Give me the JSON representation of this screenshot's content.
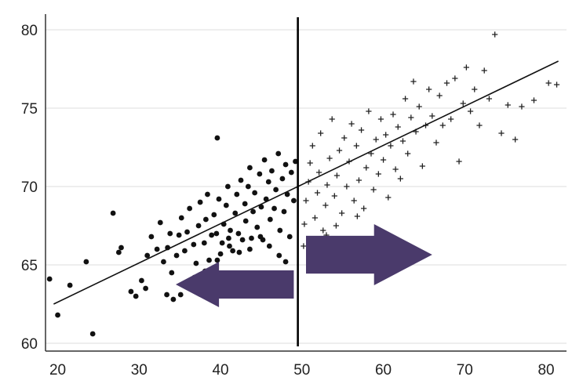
{
  "chart_data": {
    "type": "scatter",
    "title": "",
    "xlabel": "",
    "ylabel": "",
    "xlim": [
      18.5,
      82.5
    ],
    "ylim": [
      59.5,
      81
    ],
    "x_ticks": [
      20,
      30,
      40,
      50,
      60,
      70,
      80
    ],
    "y_ticks": [
      60,
      65,
      70,
      75,
      80
    ],
    "grid": "horizontal",
    "cutoff_x": 49.5,
    "regression_line": {
      "x": [
        19.5,
        81.5
      ],
      "y": [
        62.5,
        78.0
      ]
    },
    "arrows": [
      {
        "direction": "left",
        "x_range": [
          34.5,
          49
        ],
        "y_range": [
          62.3,
          65.2
        ],
        "color": "#4a3a6b"
      },
      {
        "direction": "right",
        "x_range": [
          50.5,
          66
        ],
        "y_range": [
          63.7,
          67.6
        ],
        "color": "#4a3a6b"
      }
    ],
    "series": [
      {
        "marker": "dot",
        "color": "#111111",
        "points": [
          [
            19,
            64.1
          ],
          [
            20,
            61.8
          ],
          [
            21.5,
            63.7
          ],
          [
            23.5,
            65.2
          ],
          [
            24.3,
            60.6
          ],
          [
            26.8,
            68.3
          ],
          [
            27.5,
            65.8
          ],
          [
            27.8,
            66.1
          ],
          [
            29,
            63.3
          ],
          [
            29.6,
            63.0
          ],
          [
            30.3,
            64.0
          ],
          [
            30.8,
            63.5
          ],
          [
            31.0,
            65.6
          ],
          [
            31.5,
            66.8
          ],
          [
            32.2,
            66.0
          ],
          [
            32.6,
            67.7
          ],
          [
            33.0,
            65.2
          ],
          [
            33.5,
            66.1
          ],
          [
            33.8,
            67.0
          ],
          [
            33.4,
            63.1
          ],
          [
            34.0,
            64.5
          ],
          [
            34.6,
            65.6
          ],
          [
            34.9,
            66.9
          ],
          [
            35.2,
            68.0
          ],
          [
            35.6,
            65.9
          ],
          [
            35.9,
            67.1
          ],
          [
            36.2,
            68.6
          ],
          [
            36.7,
            66.3
          ],
          [
            36.8,
            64.2
          ],
          [
            37.0,
            65.1
          ],
          [
            37.3,
            67.5
          ],
          [
            37.5,
            69.0
          ],
          [
            38.0,
            66.4
          ],
          [
            38.2,
            67.9
          ],
          [
            38.4,
            69.5
          ],
          [
            38.6,
            65.3
          ],
          [
            38.9,
            66.9
          ],
          [
            39.2,
            68.2
          ],
          [
            39.5,
            67.0
          ],
          [
            39.6,
            73.1
          ],
          [
            39.8,
            69.2
          ],
          [
            40.0,
            65.7
          ],
          [
            40.2,
            66.4
          ],
          [
            40.4,
            67.6
          ],
          [
            40.7,
            68.8
          ],
          [
            40.9,
            70.0
          ],
          [
            41.1,
            66.2
          ],
          [
            41.2,
            67.2
          ],
          [
            41.5,
            65.9
          ],
          [
            41.8,
            68.3
          ],
          [
            42.0,
            69.5
          ],
          [
            42.2,
            67.0
          ],
          [
            42.5,
            70.4
          ],
          [
            42.7,
            66.6
          ],
          [
            43.0,
            68.9
          ],
          [
            43.1,
            67.8
          ],
          [
            43.4,
            70.0
          ],
          [
            43.6,
            71.2
          ],
          [
            43.8,
            66.7
          ],
          [
            44.0,
            68.4
          ],
          [
            44.2,
            69.6
          ],
          [
            44.5,
            67.4
          ],
          [
            44.8,
            70.8
          ],
          [
            45.0,
            68.7
          ],
          [
            45.2,
            66.6
          ],
          [
            45.4,
            71.7
          ],
          [
            45.6,
            69.2
          ],
          [
            45.9,
            70.3
          ],
          [
            46.1,
            67.9
          ],
          [
            46.3,
            71.0
          ],
          [
            46.6,
            68.6
          ],
          [
            46.8,
            69.8
          ],
          [
            47.1,
            72.1
          ],
          [
            47.3,
            67.2
          ],
          [
            47.6,
            70.5
          ],
          [
            47.8,
            68.4
          ],
          [
            48.0,
            71.4
          ],
          [
            48.2,
            69.5
          ],
          [
            48.5,
            66.8
          ],
          [
            48.7,
            70.9
          ],
          [
            49.0,
            69.1
          ],
          [
            49.2,
            71.6
          ],
          [
            48.0,
            65.2
          ],
          [
            47.2,
            65.6
          ],
          [
            46.0,
            66.2
          ],
          [
            44.9,
            66.8
          ],
          [
            43.6,
            66.0
          ],
          [
            42.3,
            65.8
          ],
          [
            41.0,
            66.7
          ],
          [
            39.6,
            65.3
          ],
          [
            38.1,
            64.6
          ],
          [
            36.4,
            63.6
          ],
          [
            35.1,
            63.1
          ],
          [
            34.2,
            62.8
          ]
        ]
      },
      {
        "marker": "plus",
        "color": "#222222",
        "points": [
          [
            50.2,
            66.2
          ],
          [
            50.3,
            67.6
          ],
          [
            50.5,
            69.1
          ],
          [
            50.8,
            70.3
          ],
          [
            51.0,
            71.5
          ],
          [
            51.3,
            72.6
          ],
          [
            51.6,
            68.0
          ],
          [
            51.9,
            69.6
          ],
          [
            52.1,
            70.9
          ],
          [
            52.3,
            73.4
          ],
          [
            52.6,
            67.2
          ],
          [
            52.9,
            68.8
          ],
          [
            53.1,
            70.1
          ],
          [
            53.4,
            71.8
          ],
          [
            53.7,
            74.3
          ],
          [
            54.0,
            69.4
          ],
          [
            54.3,
            70.7
          ],
          [
            54.6,
            72.3
          ],
          [
            54.9,
            68.3
          ],
          [
            55.2,
            73.1
          ],
          [
            55.5,
            70.0
          ],
          [
            55.8,
            71.6
          ],
          [
            56.1,
            74.0
          ],
          [
            56.4,
            69.1
          ],
          [
            56.7,
            72.6
          ],
          [
            57.0,
            70.4
          ],
          [
            57.3,
            73.6
          ],
          [
            57.6,
            68.6
          ],
          [
            57.9,
            71.2
          ],
          [
            58.2,
            74.8
          ],
          [
            58.5,
            72.1
          ],
          [
            58.8,
            69.8
          ],
          [
            59.1,
            73.0
          ],
          [
            59.4,
            70.8
          ],
          [
            59.7,
            74.3
          ],
          [
            60.0,
            71.7
          ],
          [
            60.3,
            73.3
          ],
          [
            60.6,
            69.3
          ],
          [
            60.9,
            72.6
          ],
          [
            61.2,
            74.6
          ],
          [
            61.5,
            71.1
          ],
          [
            61.8,
            73.8
          ],
          [
            62.1,
            70.5
          ],
          [
            62.4,
            72.9
          ],
          [
            62.7,
            75.6
          ],
          [
            63.0,
            72.1
          ],
          [
            63.4,
            74.4
          ],
          [
            63.7,
            76.7
          ],
          [
            64.0,
            73.5
          ],
          [
            64.4,
            75.1
          ],
          [
            64.8,
            71.3
          ],
          [
            65.2,
            73.9
          ],
          [
            65.6,
            76.2
          ],
          [
            66.0,
            74.5
          ],
          [
            66.5,
            72.8
          ],
          [
            66.9,
            75.8
          ],
          [
            67.3,
            73.9
          ],
          [
            67.8,
            76.6
          ],
          [
            68.3,
            74.3
          ],
          [
            68.8,
            76.9
          ],
          [
            69.3,
            71.6
          ],
          [
            69.8,
            75.3
          ],
          [
            70.2,
            77.6
          ],
          [
            70.7,
            74.8
          ],
          [
            71.2,
            76.2
          ],
          [
            71.8,
            73.9
          ],
          [
            72.4,
            77.4
          ],
          [
            73.0,
            75.6
          ],
          [
            73.7,
            79.7
          ],
          [
            74.5,
            73.4
          ],
          [
            75.3,
            75.2
          ],
          [
            76.2,
            73.0
          ],
          [
            77.0,
            75.1
          ],
          [
            78.5,
            75.5
          ],
          [
            80.3,
            76.6
          ],
          [
            81.3,
            76.5
          ],
          [
            58.0,
            66.2
          ],
          [
            56.8,
            68.1
          ],
          [
            54.2,
            67.5
          ],
          [
            53.0,
            66.9
          ]
        ]
      }
    ]
  }
}
